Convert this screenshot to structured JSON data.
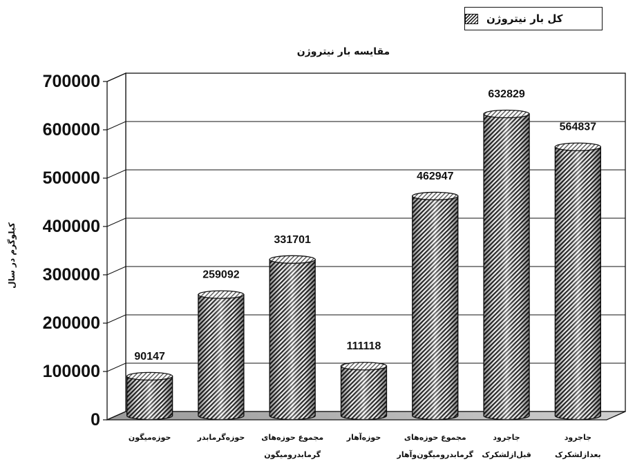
{
  "chart_data": {
    "type": "bar",
    "title": "مقایسه بار نیتروژن",
    "ylabel": "کیلوگرم در سال",
    "ylim": [
      0,
      700000
    ],
    "yticks": [
      "0",
      "100000",
      "200000",
      "300000",
      "400000",
      "500000",
      "600000",
      "700000"
    ],
    "categories": [
      [
        "حوزه‌میگون"
      ],
      [
        "حوزه‌گرمابدر"
      ],
      [
        "مجموع حوزه‌های",
        "گرمابدرومیگون"
      ],
      [
        "حوزه‌آهار"
      ],
      [
        "مجموع حوزه‌های",
        "گرمابدرومیگون‌وآهار"
      ],
      [
        "جاجرود",
        "قبل‌ازلشکرک"
      ],
      [
        "جاجرود",
        "بعدازلشکرک"
      ]
    ],
    "series": [
      {
        "name": "کل بار نیتروژن",
        "values": [
          90147,
          259092,
          331701,
          111118,
          462947,
          632829,
          564837
        ]
      }
    ],
    "data_labels": [
      "90147",
      "259092",
      "331701",
      "111118",
      "462947",
      "632829",
      "564837"
    ],
    "grid": true,
    "legend_position": "top-right",
    "style": "3d-cylinder, hatched"
  }
}
